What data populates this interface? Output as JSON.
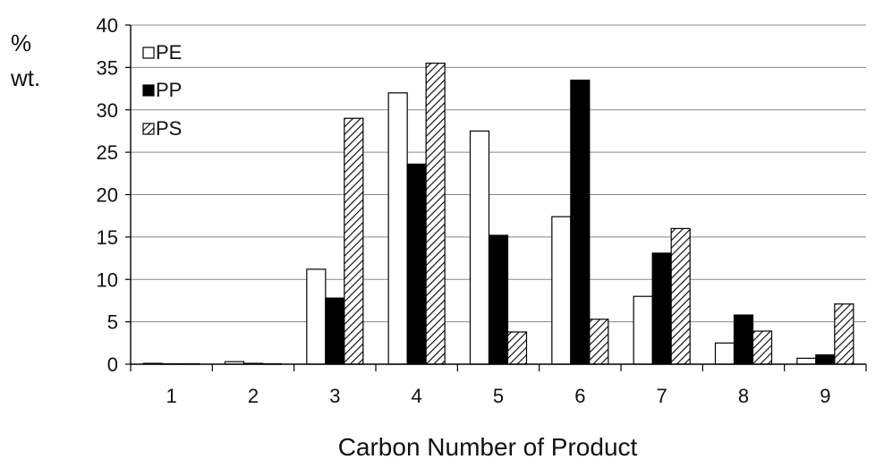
{
  "chart_data": {
    "type": "bar",
    "title": "",
    "xlabel": "Carbon Number of Product",
    "ylabel_line1": "%",
    "ylabel_line2": "wt.",
    "categories": [
      "1",
      "2",
      "3",
      "4",
      "5",
      "6",
      "7",
      "8",
      "9"
    ],
    "ylim": [
      0,
      40
    ],
    "yticks": [
      0,
      5,
      10,
      15,
      20,
      25,
      30,
      35,
      40
    ],
    "ytick_labels": [
      "0",
      "5",
      "10",
      "15",
      "20",
      "25",
      "30",
      "35",
      "40"
    ],
    "grid": "horizontal",
    "legend_position": "top-left",
    "series": [
      {
        "name": "PE",
        "values": [
          0.1,
          0.3,
          11.2,
          32.0,
          27.5,
          17.4,
          8.0,
          2.5,
          0.7
        ],
        "fill": "white"
      },
      {
        "name": "PP",
        "values": [
          0.05,
          0.1,
          7.8,
          23.6,
          15.2,
          33.5,
          13.1,
          5.8,
          1.1
        ],
        "fill": "black"
      },
      {
        "name": "PS",
        "values": [
          0.05,
          0.05,
          29.0,
          35.5,
          3.8,
          5.3,
          16.0,
          3.9,
          7.1
        ],
        "fill": "hatched"
      }
    ],
    "colors": {
      "bar_outline": "#000000",
      "pp_fill": "#000000",
      "pe_fill": "#ffffff",
      "grid": "#888888"
    }
  }
}
